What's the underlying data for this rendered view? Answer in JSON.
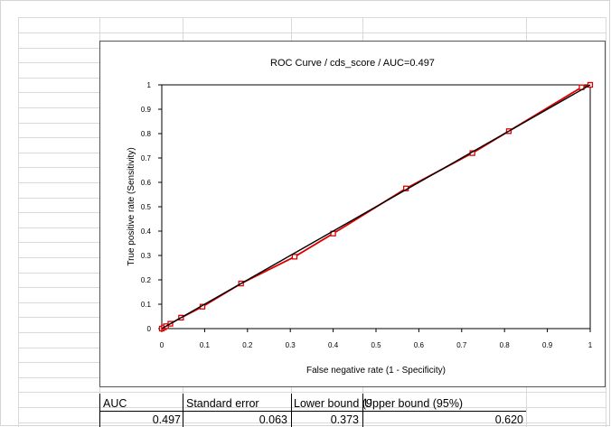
{
  "sheet": {
    "header_row": [
      "AUC",
      "Standard error",
      "Lower bound (9",
      "Upper bound (95%)"
    ],
    "value_row": [
      "0.497",
      "0.063",
      "0.373",
      "0.620"
    ]
  },
  "chart_data": {
    "type": "line",
    "title": "ROC Curve / cds_score / AUC=0.497",
    "xlabel": "False negative rate (1 - Specificity)",
    "ylabel": "True positive rate (Sensitivity)",
    "xlim": [
      0,
      1
    ],
    "ylim": [
      0,
      1
    ],
    "xticks": [
      "0",
      "0.1",
      "0.2",
      "0.3",
      "0.4",
      "0.5",
      "0.6",
      "0.7",
      "0.8",
      "0.9",
      "1"
    ],
    "yticks": [
      "0",
      "0.1",
      "0.2",
      "0.3",
      "0.4",
      "0.5",
      "0.6",
      "0.7",
      "0.8",
      "0.9",
      "1"
    ],
    "grid": false,
    "legend": false,
    "series": [
      {
        "color": "#dd0000",
        "x": [
          0,
          0.005,
          0.01,
          0.02,
          0.045,
          0.095,
          0.185,
          0.31,
          0.4,
          0.57,
          0.725,
          0.81,
          0.98,
          1
        ],
        "y": [
          0,
          0.005,
          0.01,
          0.02,
          0.045,
          0.09,
          0.185,
          0.295,
          0.39,
          0.575,
          0.72,
          0.81,
          0.99,
          1
        ]
      },
      {
        "color": "#000000",
        "x": [
          0,
          1
        ],
        "y": [
          0,
          1
        ]
      }
    ]
  }
}
